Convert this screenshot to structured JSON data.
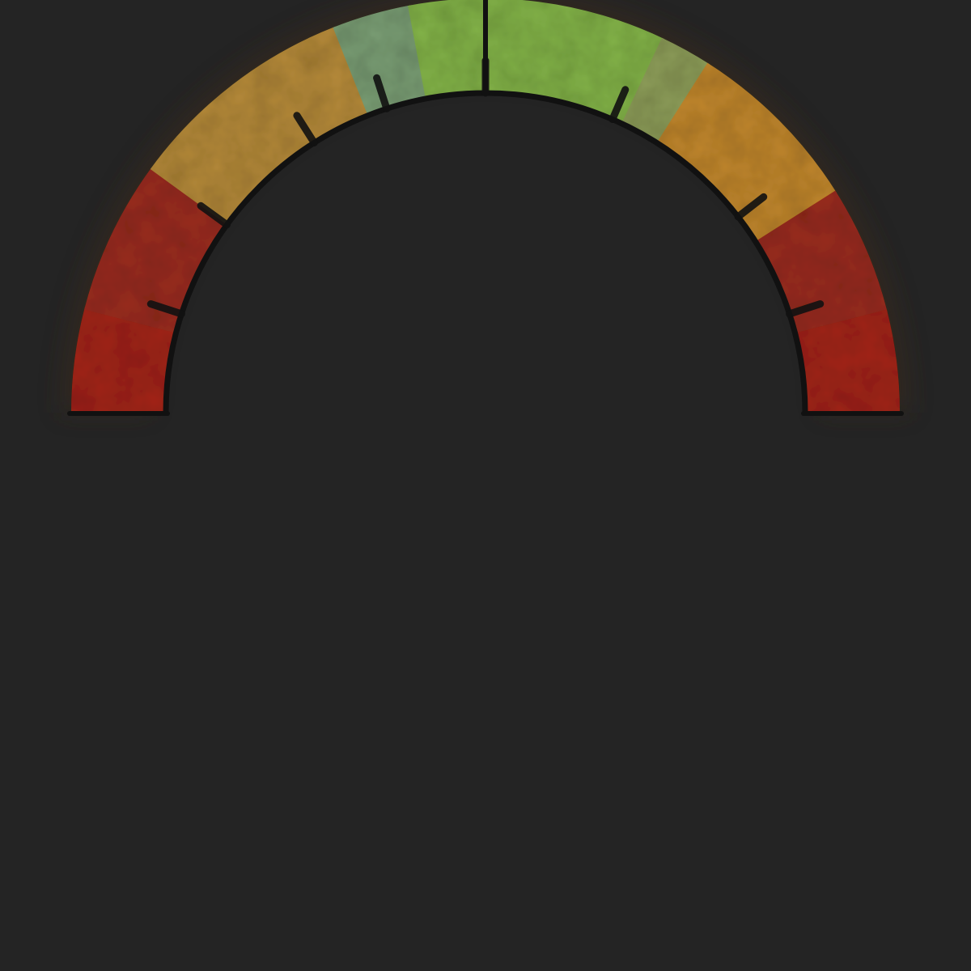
{
  "background_color": "#242424",
  "gauge": {
    "segments": [
      {
        "name": "danger-low-outer",
        "from": 0.0,
        "to": 0.08,
        "color": "#a3281a"
      },
      {
        "name": "danger-low-inner",
        "from": 0.08,
        "to": 0.2,
        "color": "#9a2e20"
      },
      {
        "name": "caution-low",
        "from": 0.2,
        "to": 0.38,
        "color": "#b58a3a"
      },
      {
        "name": "good-low",
        "from": 0.38,
        "to": 0.44,
        "color": "#7a9e74"
      },
      {
        "name": "optimal",
        "from": 0.44,
        "to": 0.64,
        "color": "#83b34a"
      },
      {
        "name": "good-high",
        "from": 0.64,
        "to": 0.68,
        "color": "#8e9e5a"
      },
      {
        "name": "caution-high",
        "from": 0.68,
        "to": 0.82,
        "color": "#c0862e"
      },
      {
        "name": "danger-high-inner",
        "from": 0.82,
        "to": 0.92,
        "color": "#9a2e20"
      },
      {
        "name": "danger-high-outer",
        "from": 0.92,
        "to": 1.0,
        "color": "#a3281a"
      }
    ],
    "ticks": [
      0.1,
      0.2,
      0.32,
      0.4,
      0.5,
      0.63,
      0.79,
      0.9
    ],
    "center_mark": 0.5,
    "inner_rim_color": "#111111"
  }
}
